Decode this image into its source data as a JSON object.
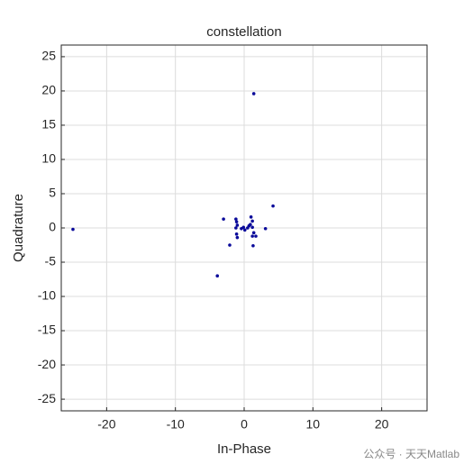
{
  "chart_data": {
    "type": "scatter",
    "title": "constellation",
    "x_label": "In-Phase",
    "y_label": "Quadrature",
    "x": [
      -24.9,
      1.4,
      4.2,
      -3.9,
      -3.0,
      -2.1,
      1.3,
      3.1,
      -1.2,
      -1.1,
      -1.0,
      -1.2,
      -1.1,
      -1.0,
      -0.1,
      0.1,
      0.5,
      -0.4,
      1.0,
      1.2,
      0.9,
      1.2,
      1.4,
      1.2,
      1.7,
      0.7
    ],
    "values": [
      -0.2,
      19.6,
      3.2,
      -7.0,
      1.3,
      -2.5,
      -2.6,
      -0.1,
      1.3,
      0.9,
      0.4,
      0.0,
      -0.9,
      -1.4,
      0.1,
      -0.3,
      0.0,
      -0.1,
      1.6,
      1.0,
      0.5,
      0.1,
      -0.7,
      -1.2,
      -1.2,
      0.3
    ],
    "color": "#0a0a9a",
    "xlim": [
      -26.6,
      26.6
    ],
    "ylim": [
      -26.7,
      26.7
    ],
    "xticks": [
      -20,
      -10,
      0,
      10,
      20
    ],
    "yticks": [
      -25,
      -20,
      -15,
      -10,
      -5,
      0,
      5,
      10,
      15,
      20,
      25
    ],
    "grid": true,
    "watermark": "公众号 · 天天Matlab"
  }
}
